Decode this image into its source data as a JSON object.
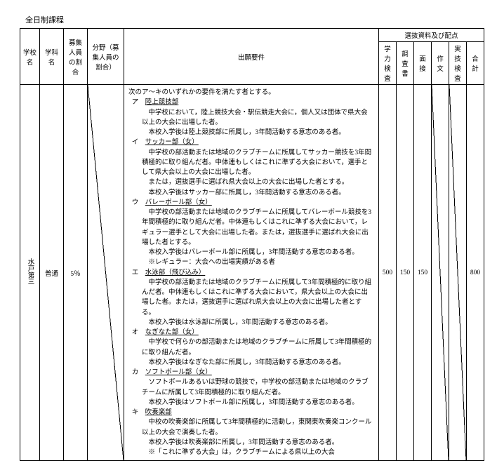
{
  "title": "全日制課程",
  "header": {
    "school": "学校名",
    "dept": "学科名",
    "ratio": "募集人員の割合",
    "field": "分野（募集人員の割合）",
    "req": "出願要件",
    "selection_group": "選抜資料及び配点",
    "cols": [
      "学力検査",
      "調査書",
      "面接",
      "作文",
      "実技検査",
      "合計"
    ]
  },
  "row": {
    "school": "水戸第三",
    "dept": "普通",
    "ratio": "5％",
    "scores": {
      "gakuryoku": "500",
      "chosa": "150",
      "mensetsu": "150",
      "goukei": "800"
    }
  },
  "req": {
    "lead": "次のア～キのいずれかの要件を満たす者とする。",
    "items": [
      {
        "k": "ア",
        "t": "陸上競技部",
        "lines": [
          "中学校において，陸上競技大会・駅伝競走大会に，個人又は団体で県大会以上の大会に出場した者。",
          "本校入学後は陸上競技部に所属し，3年間活動する意志のある者。"
        ]
      },
      {
        "k": "イ",
        "t": "サッカー部（女）",
        "lines": [
          "中学校の部活動または地域のクラブチームに所属してサッカー競技を3年間積極的に取り組んだ者。中体連もしくはこれに準ずる大会において，選手として県大会以上の大会に出場した者。",
          "または，選抜選手に選ばれ県大会以上の大会に出場した者とする。",
          "本校入学後はサッカー部に所属し，3年間活動する意志のある者。"
        ]
      },
      {
        "k": "ウ",
        "t": "バレーボール部（女）",
        "lines": [
          "中学校の部活動または地域のクラブチームに所属してバレーボール競技を3年間積極的に取り組んだ者。中体連もしくはこれに準ずる大会において，レギュラー選手として大会に出場した者。または，選抜選手に選ばれ大会に出場した者とする。",
          "本校入学後はバレーボール部に所属し，3年間活動する意志のある者。",
          "※レギュラー：大会への出場実績がある者"
        ]
      },
      {
        "k": "エ",
        "t": "水泳部（飛び込み）",
        "lines": [
          "中学校の部活動または地域のクラブチームに所属して3年間積極的に取り組んだ者。中体連もしくはこれに準ずる大会において，県大会以上の大会に出場した者。または，選抜選手に選ばれ県大会以上の大会に出場した者とする。",
          "本校入学後は水泳部に所属し，3年間活動する意志のある者。"
        ]
      },
      {
        "k": "オ",
        "t": "なぎなた部（女）",
        "lines": [
          "中学校で何らかの部活動または地域のクラブチームに所属して3年間積極的に取り組んだ者。",
          "本校入学後はなぎなた部に所属し，3年間活動する意志のある者。"
        ]
      },
      {
        "k": "カ",
        "t": "ソフトボール部（女）",
        "lines": [
          "ソフトボールあるいは野球の競技で，中学校の部活動または地域のクラブチームに所属して3年間積極的に取り組んだ者。",
          "本校入学後はソフトボール部に所属し，3年間活動する意志のある者。"
        ]
      },
      {
        "k": "キ",
        "t": "吹奏楽部",
        "lines": [
          "中校の吹奏楽部に所属して3年間積極的に活動し，東関東吹奏楽コンクール以上の大会で演奏した者。",
          "本校入学後は吹奏楽部に所属し，3年間活動する意志のある者。",
          "※「これに準ずる大会」は，クラブチームによる県以上の大会"
        ]
      }
    ]
  }
}
